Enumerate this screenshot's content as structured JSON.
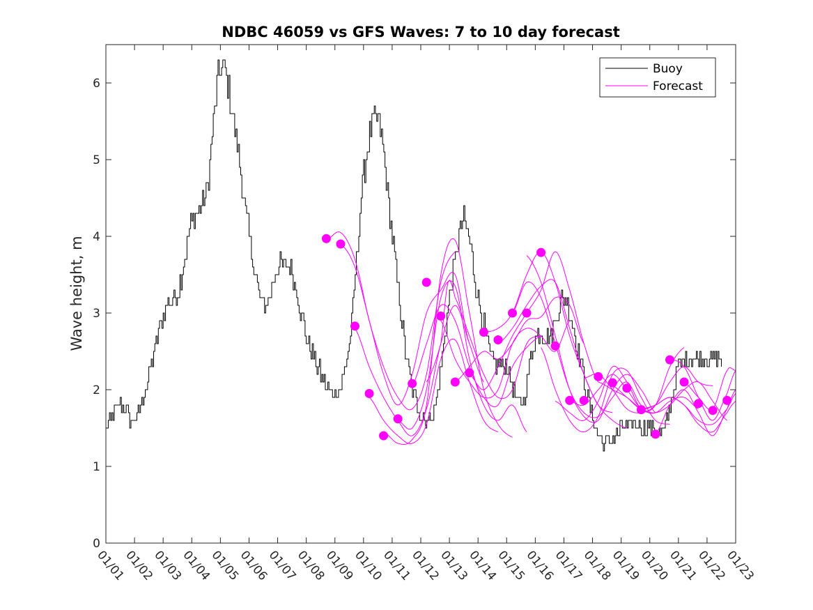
{
  "chart_data": {
    "type": "line",
    "title": "NDBC 46059 vs GFS Waves: 7 to 10 day forecast",
    "xlabel": "",
    "ylabel": "Wave height, m",
    "xlim": [
      0,
      22
    ],
    "ylim": [
      0,
      6.5
    ],
    "x_ticks": [
      "01/01",
      "01/02",
      "01/03",
      "01/04",
      "01/05",
      "01/06",
      "01/07",
      "01/08",
      "01/09",
      "01/10",
      "01/11",
      "01/12",
      "01/13",
      "01/14",
      "01/15",
      "01/16",
      "01/17",
      "01/18",
      "01/19",
      "01/20",
      "01/21",
      "01/22",
      "01/23"
    ],
    "y_ticks": [
      0,
      1,
      2,
      3,
      4,
      5,
      6
    ],
    "legend": {
      "position": "top-right",
      "entries": [
        {
          "label": "Buoy",
          "color": "#000000"
        },
        {
          "label": "Forecast",
          "color": "#ff00ff"
        }
      ]
    },
    "series": [
      {
        "name": "Buoy",
        "color": "#000000",
        "x": [
          0,
          0.5,
          1.0,
          1.5,
          2.0,
          2.5,
          3.0,
          3.5,
          4.0,
          4.5,
          5.0,
          5.5,
          6.0,
          6.5,
          7.0,
          7.5,
          8.0,
          8.5,
          9.0,
          9.5,
          10.0,
          10.5,
          11.0,
          11.5,
          12.0,
          12.5,
          13.0,
          13.5,
          14.0,
          14.5,
          15.0,
          15.5,
          16.0,
          16.5,
          17.0,
          17.5,
          18.0,
          18.5,
          19.0,
          19.5,
          20.0,
          20.5,
          21.0,
          21.5
        ],
        "y": [
          1.5,
          1.8,
          1.6,
          2.2,
          3.0,
          3.3,
          4.2,
          4.6,
          6.2,
          5.4,
          4.0,
          3.1,
          3.6,
          3.5,
          2.7,
          2.2,
          1.95,
          2.6,
          4.8,
          5.5,
          4.0,
          2.4,
          1.7,
          1.8,
          3.2,
          4.2,
          3.2,
          2.4,
          2.3,
          1.8,
          2.7,
          2.7,
          3.2,
          2.5,
          1.6,
          1.3,
          1.5,
          1.55,
          1.5,
          1.5,
          2.3,
          2.4,
          2.4,
          2.4
        ],
        "noise": 0.13
      },
      {
        "name": "Forecast run 1",
        "color": "#ff00ff",
        "x": [
          7.7,
          8.2,
          8.7,
          9.2,
          9.7,
          10.2,
          10.7,
          11.2,
          11.7,
          12.2
        ],
        "y": [
          3.95,
          4.05,
          3.7,
          2.9,
          2.3,
          1.9,
          1.75,
          2.2,
          3.4,
          3.8
        ]
      },
      {
        "name": "Forecast run 2",
        "color": "#ff00ff",
        "x": [
          8.2,
          8.7,
          9.2,
          9.7,
          10.2,
          10.7,
          11.2,
          11.7,
          12.2,
          12.7
        ],
        "y": [
          3.9,
          3.6,
          2.9,
          2.2,
          1.8,
          2.2,
          3.0,
          3.3,
          3.5,
          2.6
        ]
      },
      {
        "name": "Forecast run 3",
        "color": "#ff00ff",
        "x": [
          8.7,
          9.2,
          9.7,
          10.2,
          10.7,
          11.2,
          11.7,
          12.2,
          12.7,
          13.2
        ],
        "y": [
          2.8,
          2.3,
          1.9,
          1.6,
          1.4,
          1.75,
          2.6,
          3.1,
          2.6,
          2.1
        ]
      },
      {
        "name": "Forecast run 4",
        "color": "#ff00ff",
        "x": [
          9.2,
          9.7,
          10.2,
          10.7,
          11.2,
          11.7,
          12.2,
          12.7,
          13.2,
          13.7
        ],
        "y": [
          1.9,
          1.6,
          1.4,
          1.3,
          1.55,
          2.4,
          2.65,
          2.1,
          1.6,
          1.45
        ]
      },
      {
        "name": "Forecast run 5",
        "color": "#ff00ff",
        "x": [
          9.7,
          10.2,
          10.7,
          11.2,
          11.7,
          12.2,
          12.7,
          13.2,
          13.7,
          14.2
        ],
        "y": [
          1.45,
          1.3,
          1.35,
          1.8,
          3.5,
          3.95,
          3.0,
          2.0,
          1.55,
          1.38
        ]
      },
      {
        "name": "Forecast run 6",
        "color": "#ff00ff",
        "x": [
          10.2,
          10.7,
          11.2,
          11.7,
          12.2,
          12.7,
          13.2,
          13.7,
          14.2,
          14.7
        ],
        "y": [
          1.6,
          1.5,
          2.0,
          3.2,
          3.35,
          2.4,
          1.8,
          1.6,
          1.8,
          1.45
        ]
      },
      {
        "name": "Forecast run 7",
        "color": "#ff00ff",
        "x": [
          10.7,
          11.2,
          11.7,
          12.2,
          12.7,
          13.2,
          13.7,
          14.2,
          14.7,
          15.2
        ],
        "y": [
          2.05,
          2.6,
          3.1,
          2.9,
          2.3,
          1.9,
          1.8,
          2.3,
          2.55,
          2.7
        ]
      },
      {
        "name": "Forecast run 8",
        "color": "#ff00ff",
        "x": [
          11.2,
          11.7,
          11.95,
          12.2,
          12.7,
          13.2,
          13.7,
          14.2,
          14.7,
          15.2
        ],
        "y": [
          2.1,
          2.6,
          3.4,
          3.2,
          2.7,
          2.2,
          1.9,
          2.0,
          2.6,
          2.7
        ]
      },
      {
        "name": "Forecast run 9",
        "color": "#ff00ff",
        "x": [
          11.7,
          12.2,
          12.7,
          13.2,
          13.7,
          14.2,
          14.7,
          15.2,
          15.7,
          16.2
        ],
        "y": [
          2.9,
          2.4,
          2.1,
          1.9,
          2.0,
          2.6,
          2.8,
          2.7,
          2.5,
          2.9
        ]
      },
      {
        "name": "Forecast run 10",
        "color": "#ff00ff",
        "x": [
          12.2,
          12.7,
          13.2,
          13.7,
          14.2,
          14.7,
          15.2,
          15.7,
          16.2,
          16.7
        ],
        "y": [
          2.1,
          2.3,
          2.5,
          2.4,
          2.6,
          2.9,
          2.95,
          3.2,
          3.1,
          2.6
        ]
      },
      {
        "name": "Forecast run 11",
        "color": "#ff00ff",
        "x": [
          12.7,
          13.2,
          13.7,
          14.2,
          14.7,
          15.2,
          15.7,
          16.2,
          16.7,
          17.2
        ],
        "y": [
          2.2,
          2.0,
          2.3,
          2.7,
          3.0,
          3.3,
          3.8,
          3.3,
          2.6,
          2.1
        ]
      },
      {
        "name": "Forecast run 12",
        "color": "#ff00ff",
        "x": [
          13.2,
          13.7,
          14.2,
          14.7,
          15.2,
          15.7,
          16.2,
          16.7,
          17.2,
          17.7
        ],
        "y": [
          2.75,
          2.8,
          3.0,
          3.5,
          3.8,
          3.4,
          2.7,
          2.2,
          1.8,
          1.7
        ]
      },
      {
        "name": "Forecast run 13",
        "color": "#ff00ff",
        "x": [
          13.7,
          14.2,
          14.7,
          15.2,
          15.7,
          16.2,
          16.7,
          17.2,
          17.7,
          18.2
        ],
        "y": [
          2.6,
          2.8,
          3.1,
          3.35,
          3.4,
          2.8,
          2.2,
          1.8,
          1.6,
          1.5
        ]
      },
      {
        "name": "Forecast run 14",
        "color": "#ff00ff",
        "x": [
          14.2,
          14.7,
          15.2,
          15.7,
          16.2,
          16.7,
          17.2,
          17.7,
          18.2,
          18.7
        ],
        "y": [
          3.0,
          3.4,
          3.2,
          2.6,
          2.0,
          1.7,
          1.65,
          1.9,
          2.1,
          1.8
        ]
      },
      {
        "name": "Forecast run 15",
        "color": "#ff00ff",
        "x": [
          14.7,
          15.2,
          15.7,
          16.2,
          16.7,
          17.2,
          17.7,
          18.2,
          18.7,
          19.2
        ],
        "y": [
          3.75,
          3.4,
          2.7,
          2.0,
          1.65,
          1.6,
          2.0,
          2.2,
          2.0,
          1.7
        ]
      },
      {
        "name": "Forecast run 16",
        "color": "#ff00ff",
        "x": [
          15.2,
          15.7,
          16.2,
          16.7,
          17.2,
          17.7,
          18.2,
          18.7,
          19.2,
          19.7
        ],
        "y": [
          2.55,
          2.0,
          1.6,
          1.45,
          1.65,
          2.2,
          2.25,
          1.9,
          1.6,
          1.55
        ]
      },
      {
        "name": "Forecast run 17",
        "color": "#ff00ff",
        "x": [
          15.7,
          16.2,
          16.7,
          17.2,
          17.7,
          18.2,
          18.7,
          19.2,
          19.7,
          20.2
        ],
        "y": [
          1.85,
          1.7,
          1.6,
          1.85,
          2.3,
          2.1,
          1.75,
          1.8,
          2.3,
          2.55
        ]
      },
      {
        "name": "Forecast run 18",
        "color": "#ff00ff",
        "x": [
          16.2,
          16.7,
          17.2,
          17.7,
          18.2,
          18.7,
          19.2,
          19.7,
          20.2,
          20.7
        ],
        "y": [
          1.85,
          1.8,
          2.0,
          2.2,
          2.0,
          1.75,
          1.7,
          1.85,
          1.9,
          1.75
        ]
      },
      {
        "name": "Forecast run 19",
        "color": "#ff00ff",
        "x": [
          16.7,
          17.2,
          17.7,
          18.2,
          18.7,
          19.2,
          19.7,
          20.2,
          20.7,
          21.2
        ],
        "y": [
          2.15,
          2.2,
          2.0,
          1.75,
          1.7,
          1.8,
          2.1,
          2.3,
          2.1,
          2.05
        ]
      },
      {
        "name": "Forecast run 20",
        "color": "#ff00ff",
        "x": [
          17.2,
          17.7,
          18.2,
          18.7,
          19.2,
          19.7,
          20.2,
          20.7,
          21.2,
          21.7
        ],
        "y": [
          2.1,
          2.0,
          1.9,
          1.75,
          1.7,
          1.8,
          2.0,
          2.1,
          1.85,
          1.6
        ]
      },
      {
        "name": "Forecast run 21",
        "color": "#ff00ff",
        "x": [
          17.7,
          18.2,
          18.7,
          19.2,
          19.7,
          20.2,
          20.7,
          21.2,
          21.7,
          22.0
        ],
        "y": [
          2.05,
          1.9,
          1.75,
          1.8,
          1.9,
          1.8,
          1.55,
          1.45,
          1.7,
          1.85
        ]
      },
      {
        "name": "Forecast run 22",
        "color": "#ff00ff",
        "x": [
          18.7,
          19.2,
          19.7,
          20.2,
          20.7,
          21.2,
          21.7,
          22.0
        ],
        "y": [
          1.75,
          1.8,
          1.9,
          1.8,
          1.6,
          1.55,
          1.75,
          1.95
        ]
      },
      {
        "name": "Forecast run 23",
        "color": "#ff00ff",
        "x": [
          19.2,
          19.7,
          20.2,
          20.7,
          21.2,
          21.7,
          22.0
        ],
        "y": [
          1.42,
          1.8,
          2.0,
          1.7,
          1.4,
          1.75,
          2.0
        ]
      },
      {
        "name": "Forecast run 24",
        "color": "#ff00ff",
        "x": [
          19.7,
          20.2,
          20.7,
          21.2,
          21.7,
          22.0
        ],
        "y": [
          2.4,
          2.3,
          1.9,
          1.6,
          1.95,
          2.25
        ]
      },
      {
        "name": "Forecast run 25",
        "color": "#ff00ff",
        "x": [
          20.2,
          20.7,
          21.2,
          21.7,
          22.0
        ],
        "y": [
          2.1,
          1.9,
          1.75,
          2.25,
          2.25
        ]
      }
    ],
    "forecast_markers": {
      "name": "Forecast",
      "color": "#ff00ff",
      "x": [
        7.7,
        8.2,
        8.7,
        9.2,
        9.7,
        10.2,
        10.7,
        11.2,
        11.7,
        12.2,
        12.7,
        13.2,
        13.7,
        14.2,
        14.7,
        15.2,
        15.7,
        16.2,
        16.7,
        17.2,
        17.7,
        18.2,
        18.7,
        19.2,
        19.7,
        20.2,
        20.7,
        21.2,
        21.7
      ],
      "y": [
        3.97,
        3.9,
        2.83,
        1.95,
        1.4,
        1.62,
        2.08,
        3.4,
        2.96,
        2.1,
        2.22,
        2.75,
        2.65,
        3.0,
        3.0,
        3.79,
        2.57,
        1.86,
        1.86,
        2.17,
        2.09,
        2.02,
        1.74,
        1.42,
        2.39,
        2.1,
        1.82,
        1.73,
        1.86
      ]
    }
  }
}
